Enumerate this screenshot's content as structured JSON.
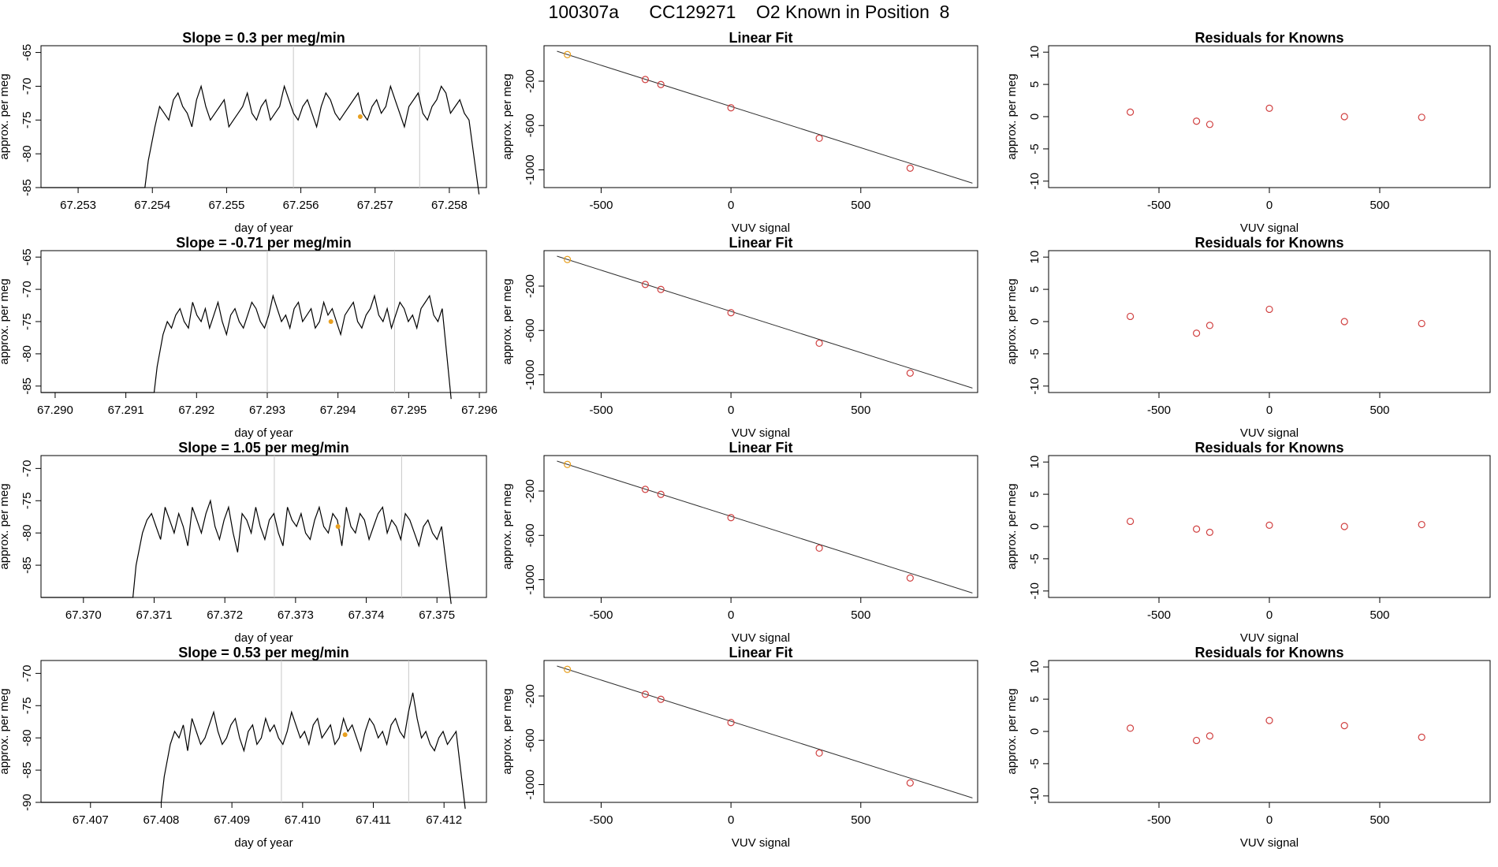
{
  "page": {
    "title": "100307a      CC129271    O2 Known in Position  8"
  },
  "colors": {
    "series_line": "#000000",
    "marker_vertical": "#c8c8c8",
    "highlight_point": "#e8a020",
    "residual_point": "#d04040",
    "fit_line": "#303030",
    "fit_point": "#d04040"
  },
  "chart_data": [
    {
      "type": "line",
      "title": "Slope =  0.3  per meg/min",
      "xlabel": "day of year",
      "ylabel": "approx. per meg",
      "xlim": [
        67.2525,
        67.2585
      ],
      "ylim": [
        -85,
        -64
      ],
      "xticks": [
        "67.253",
        "67.254",
        "67.255",
        "67.256",
        "67.257",
        "67.258"
      ],
      "yticks": [
        "-85",
        "-80",
        "-75",
        "-70",
        "-65"
      ],
      "start": 67.2539,
      "end": 67.2584,
      "base": -75,
      "vlines": [
        67.2559,
        67.2576
      ],
      "highlight": {
        "x": 67.2568,
        "y": -74.5
      },
      "series": [
        {
          "values": [
            -76,
            -73,
            -74,
            -75,
            -72,
            -71,
            -73,
            -74,
            -76,
            -72,
            -70,
            -73,
            -75,
            -74,
            -73,
            -72,
            -76,
            -75,
            -74,
            -73,
            -71,
            -74,
            -75,
            -73,
            -72,
            -75,
            -74,
            -73,
            -70,
            -72,
            -74,
            -75,
            -73,
            -72,
            -74,
            -76,
            -73,
            -71,
            -72,
            -74,
            -75,
            -74,
            -73,
            -72,
            -71,
            -74,
            -75,
            -73,
            -72,
            -74,
            -73,
            -70,
            -72,
            -74,
            -76,
            -73,
            -72,
            -71,
            -74,
            -75,
            -73,
            -72,
            -70,
            -71,
            -74,
            -73,
            -72,
            -74,
            -75
          ]
        }
      ]
    },
    {
      "type": "line",
      "title": "Slope =  -0.71  per meg/min",
      "xlabel": "day of year",
      "ylabel": "approx. per meg",
      "xlim": [
        67.2898,
        67.2961
      ],
      "ylim": [
        -86,
        -64
      ],
      "xticks": [
        "67.290",
        "67.291",
        "67.292",
        "67.293",
        "67.294",
        "67.295",
        "67.296"
      ],
      "yticks": [
        "-85",
        "-80",
        "-75",
        "-70",
        "-65"
      ],
      "start": 67.2914,
      "end": 67.2956,
      "base": -76,
      "vlines": [
        67.293,
        67.2948
      ],
      "highlight": {
        "x": 67.2939,
        "y": -75
      },
      "series": [
        {
          "values": [
            -77,
            -75,
            -76,
            -74,
            -73,
            -75,
            -76,
            -72,
            -74,
            -75,
            -73,
            -76,
            -74,
            -72,
            -75,
            -77,
            -74,
            -73,
            -75,
            -76,
            -74,
            -72,
            -73,
            -75,
            -76,
            -74,
            -71,
            -73,
            -75,
            -74,
            -76,
            -73,
            -72,
            -75,
            -74,
            -73,
            -76,
            -75,
            -72,
            -74,
            -73,
            -75,
            -77,
            -74,
            -73,
            -72,
            -75,
            -76,
            -74,
            -73,
            -71,
            -74,
            -75,
            -73,
            -76,
            -74,
            -72,
            -73,
            -75,
            -74,
            -76,
            -73,
            -72,
            -71,
            -74,
            -75,
            -73
          ]
        }
      ]
    },
    {
      "type": "line",
      "title": "Slope =  1.05  per meg/min",
      "xlabel": "day of year",
      "ylabel": "approx. per meg",
      "xlim": [
        67.3694,
        67.3757
      ],
      "ylim": [
        -90,
        -68
      ],
      "xticks": [
        "67.370",
        "67.371",
        "67.372",
        "67.373",
        "67.374",
        "67.375"
      ],
      "yticks": [
        "-85",
        "-80",
        "-75",
        "-70"
      ],
      "start": 67.3707,
      "end": 67.3752,
      "base": -79,
      "vlines": [
        67.3727,
        67.3745
      ],
      "highlight": {
        "x": 67.3736,
        "y": -79
      },
      "series": [
        {
          "values": [
            -80,
            -78,
            -77,
            -79,
            -81,
            -76,
            -78,
            -80,
            -77,
            -79,
            -82,
            -76,
            -78,
            -80,
            -77,
            -75,
            -79,
            -81,
            -78,
            -76,
            -80,
            -83,
            -77,
            -78,
            -80,
            -76,
            -79,
            -81,
            -78,
            -77,
            -80,
            -82,
            -76,
            -78,
            -79,
            -77,
            -80,
            -81,
            -78,
            -76,
            -79,
            -80,
            -77,
            -78,
            -82,
            -76,
            -79,
            -80,
            -77,
            -78,
            -81,
            -79,
            -77,
            -76,
            -80,
            -78,
            -79,
            -81,
            -77,
            -78,
            -80,
            -82,
            -79,
            -78,
            -80,
            -81,
            -79
          ]
        }
      ]
    },
    {
      "type": "line",
      "title": "Slope =  0.53  per meg/min",
      "xlabel": "day of year",
      "ylabel": "approx. per meg",
      "xlim": [
        67.4063,
        67.4126
      ],
      "ylim": [
        -90,
        -68
      ],
      "xticks": [
        "67.407",
        "67.408",
        "67.409",
        "67.410",
        "67.411",
        "67.412"
      ],
      "yticks": [
        "-90",
        "-85",
        "-80",
        "-75",
        "-70"
      ],
      "start": 67.408,
      "end": 67.4123,
      "base": -80,
      "vlines": [
        67.4097,
        67.4115
      ],
      "highlight": {
        "x": 67.4106,
        "y": -79.5
      },
      "series": [
        {
          "values": [
            -81,
            -79,
            -80,
            -78,
            -82,
            -77,
            -79,
            -81,
            -80,
            -78,
            -76,
            -79,
            -81,
            -80,
            -78,
            -77,
            -80,
            -82,
            -79,
            -78,
            -81,
            -80,
            -77,
            -79,
            -78,
            -80,
            -81,
            -79,
            -76,
            -78,
            -80,
            -79,
            -81,
            -78,
            -77,
            -80,
            -79,
            -78,
            -81,
            -80,
            -77,
            -79,
            -78,
            -80,
            -82,
            -79,
            -77,
            -78,
            -80,
            -79,
            -81,
            -78,
            -77,
            -79,
            -80,
            -76,
            -73,
            -77,
            -80,
            -79,
            -81,
            -82,
            -80,
            -79,
            -81,
            -80,
            -79
          ]
        }
      ]
    },
    {
      "type": "scatter",
      "title": "Linear Fit",
      "xlabel": "VUV signal",
      "ylabel": "approx. per meg",
      "xlim": [
        -720,
        950
      ],
      "ylim": [
        -1160,
        120
      ],
      "xticks": [
        -500,
        0,
        500
      ],
      "yticks": [
        -200,
        -600,
        -1000
      ],
      "line": [
        [
          -670,
          70
        ],
        [
          930,
          -1120
        ]
      ],
      "series": [
        {
          "x": [
            -630,
            -330,
            -270,
            0,
            340,
            690
          ],
          "y": [
            40,
            -185,
            -230,
            -440,
            -715,
            -985
          ]
        }
      ]
    },
    {
      "type": "scatter",
      "title": "Linear Fit",
      "xlabel": "VUV signal",
      "ylabel": "approx. per meg",
      "xlim": [
        -720,
        950
      ],
      "ylim": [
        -1160,
        120
      ],
      "xticks": [
        -500,
        0,
        500
      ],
      "yticks": [
        -200,
        -600,
        -1000
      ],
      "line": [
        [
          -670,
          70
        ],
        [
          930,
          -1120
        ]
      ],
      "series": [
        {
          "x": [
            -630,
            -330,
            -270,
            0,
            340,
            690
          ],
          "y": [
            40,
            -185,
            -230,
            -440,
            -715,
            -985
          ]
        }
      ]
    },
    {
      "type": "scatter",
      "title": "Linear Fit",
      "xlabel": "VUV signal",
      "ylabel": "approx. per meg",
      "xlim": [
        -720,
        950
      ],
      "ylim": [
        -1160,
        120
      ],
      "xticks": [
        -500,
        0,
        500
      ],
      "yticks": [
        -200,
        -600,
        -1000
      ],
      "line": [
        [
          -670,
          70
        ],
        [
          930,
          -1120
        ]
      ],
      "series": [
        {
          "x": [
            -630,
            -330,
            -270,
            0,
            340,
            690
          ],
          "y": [
            40,
            -185,
            -230,
            -440,
            -715,
            -985
          ]
        }
      ]
    },
    {
      "type": "scatter",
      "title": "Linear Fit",
      "xlabel": "VUV signal",
      "ylabel": "approx. per meg",
      "xlim": [
        -720,
        950
      ],
      "ylim": [
        -1160,
        120
      ],
      "xticks": [
        -500,
        0,
        500
      ],
      "yticks": [
        -200,
        -600,
        -1000
      ],
      "line": [
        [
          -670,
          70
        ],
        [
          930,
          -1120
        ]
      ],
      "series": [
        {
          "x": [
            -630,
            -330,
            -270,
            0,
            340,
            690
          ],
          "y": [
            40,
            -185,
            -230,
            -440,
            -715,
            -985
          ]
        }
      ]
    },
    {
      "type": "scatter",
      "title": "Residuals for Knowns",
      "xlabel": "VUV signal",
      "ylabel": "approx. per meg",
      "xlim": [
        -1000,
        1000
      ],
      "ylim": [
        -11,
        11
      ],
      "xticks": [
        -500,
        0,
        500
      ],
      "yticks": [
        -10,
        -5,
        0,
        5,
        10
      ],
      "series": [
        {
          "x": [
            -630,
            -330,
            -270,
            0,
            340,
            690
          ],
          "y": [
            0.7,
            -0.7,
            -1.2,
            1.3,
            0.0,
            -0.1
          ]
        }
      ]
    },
    {
      "type": "scatter",
      "title": "Residuals for Knowns",
      "xlabel": "VUV signal",
      "ylabel": "approx. per meg",
      "xlim": [
        -1000,
        1000
      ],
      "ylim": [
        -11,
        11
      ],
      "xticks": [
        -500,
        0,
        500
      ],
      "yticks": [
        -10,
        -5,
        0,
        5,
        10
      ],
      "series": [
        {
          "x": [
            -630,
            -330,
            -270,
            0,
            340,
            690
          ],
          "y": [
            0.8,
            -1.8,
            -0.6,
            1.9,
            0.0,
            -0.3
          ]
        }
      ]
    },
    {
      "type": "scatter",
      "title": "Residuals for Knowns",
      "xlabel": "VUV signal",
      "ylabel": "approx. per meg",
      "xlim": [
        -1000,
        1000
      ],
      "ylim": [
        -11,
        11
      ],
      "xticks": [
        -500,
        0,
        500
      ],
      "yticks": [
        -10,
        -5,
        0,
        5,
        10
      ],
      "series": [
        {
          "x": [
            -630,
            -330,
            -270,
            0,
            340,
            690
          ],
          "y": [
            0.8,
            -0.4,
            -0.9,
            0.2,
            0.0,
            0.3
          ]
        }
      ]
    },
    {
      "type": "scatter",
      "title": "Residuals for Knowns",
      "xlabel": "VUV signal",
      "ylabel": "approx. per meg",
      "xlim": [
        -1000,
        1000
      ],
      "ylim": [
        -11,
        11
      ],
      "xticks": [
        -500,
        0,
        500
      ],
      "yticks": [
        -10,
        -5,
        0,
        5,
        10
      ],
      "series": [
        {
          "x": [
            -630,
            -330,
            -270,
            0,
            340,
            690
          ],
          "y": [
            0.5,
            -1.4,
            -0.7,
            1.7,
            0.9,
            -0.9
          ]
        }
      ]
    }
  ]
}
